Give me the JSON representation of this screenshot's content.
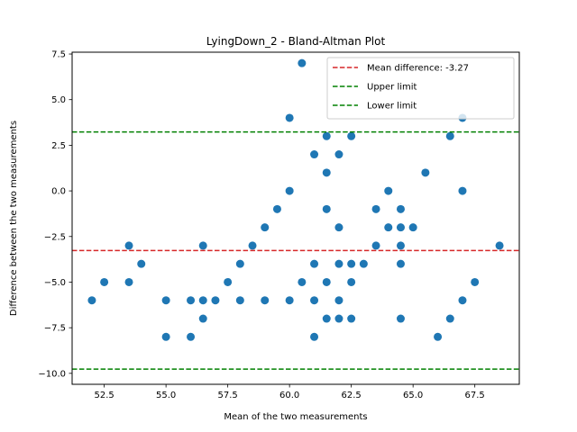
{
  "chart_data": {
    "type": "scatter",
    "title": "LyingDown_2 - Bland-Altman Plot",
    "xlabel": "Mean of the two measurements",
    "ylabel": "Difference between the two measurements",
    "xlim": [
      51.2,
      69.3
    ],
    "ylim": [
      -10.6,
      7.6
    ],
    "xticks": [
      52.5,
      55.0,
      57.5,
      60.0,
      62.5,
      65.0,
      67.5
    ],
    "xtick_labels": [
      "52.5",
      "55.0",
      "57.5",
      "60.0",
      "62.5",
      "65.0",
      "67.5"
    ],
    "yticks": [
      7.5,
      5.0,
      2.5,
      0.0,
      -2.5,
      -5.0,
      -7.5,
      -10.0
    ],
    "ytick_labels": [
      "7.5",
      "5.0",
      "2.5",
      "0.0",
      "−2.5",
      "−5.0",
      "−7.5",
      "−10.0"
    ],
    "grid": false,
    "legend_position": "top-right",
    "marker_color": "#1f77b4",
    "lines": [
      {
        "name": "Mean difference: -3.27",
        "y": -3.27,
        "color": "#d62728",
        "style": "dashed"
      },
      {
        "name": "Upper limit",
        "y": 3.23,
        "color": "#008000",
        "style": "dashed"
      },
      {
        "name": "Lower limit",
        "y": -9.77,
        "color": "#008000",
        "style": "dashed"
      }
    ],
    "points": [
      [
        52.0,
        -6
      ],
      [
        52.5,
        -5
      ],
      [
        53.5,
        -3
      ],
      [
        53.5,
        -5
      ],
      [
        54.0,
        -4
      ],
      [
        55.0,
        -6
      ],
      [
        55.0,
        -8
      ],
      [
        56.0,
        -6
      ],
      [
        56.0,
        -8
      ],
      [
        56.5,
        -3
      ],
      [
        56.5,
        -6
      ],
      [
        56.5,
        -7
      ],
      [
        57.0,
        -6
      ],
      [
        57.5,
        -5
      ],
      [
        58.0,
        -4
      ],
      [
        58.0,
        -6
      ],
      [
        58.5,
        -3
      ],
      [
        59.0,
        -2
      ],
      [
        59.0,
        -6
      ],
      [
        59.5,
        -1
      ],
      [
        60.0,
        4
      ],
      [
        60.0,
        0
      ],
      [
        60.0,
        -6
      ],
      [
        60.5,
        7
      ],
      [
        60.5,
        -5
      ],
      [
        61.0,
        2
      ],
      [
        61.0,
        -4
      ],
      [
        61.0,
        -6
      ],
      [
        61.0,
        -8
      ],
      [
        61.5,
        3
      ],
      [
        61.5,
        1
      ],
      [
        61.5,
        -1
      ],
      [
        61.5,
        -5
      ],
      [
        61.5,
        -7
      ],
      [
        62.0,
        2
      ],
      [
        62.0,
        -2
      ],
      [
        62.0,
        -4
      ],
      [
        62.0,
        -6
      ],
      [
        62.0,
        -7
      ],
      [
        62.5,
        3
      ],
      [
        62.5,
        -4
      ],
      [
        62.5,
        -5
      ],
      [
        62.5,
        -7
      ],
      [
        63.0,
        -4
      ],
      [
        63.5,
        -1
      ],
      [
        63.5,
        -3
      ],
      [
        64.0,
        0
      ],
      [
        64.0,
        -2
      ],
      [
        64.5,
        -1
      ],
      [
        64.5,
        -2
      ],
      [
        64.5,
        -3
      ],
      [
        64.5,
        -4
      ],
      [
        64.5,
        -7
      ],
      [
        65.0,
        -2
      ],
      [
        65.5,
        1
      ],
      [
        66.0,
        -8
      ],
      [
        66.5,
        3
      ],
      [
        66.5,
        -7
      ],
      [
        67.0,
        4
      ],
      [
        67.0,
        0
      ],
      [
        67.0,
        -6
      ],
      [
        67.5,
        -5
      ],
      [
        68.5,
        -3
      ]
    ]
  }
}
